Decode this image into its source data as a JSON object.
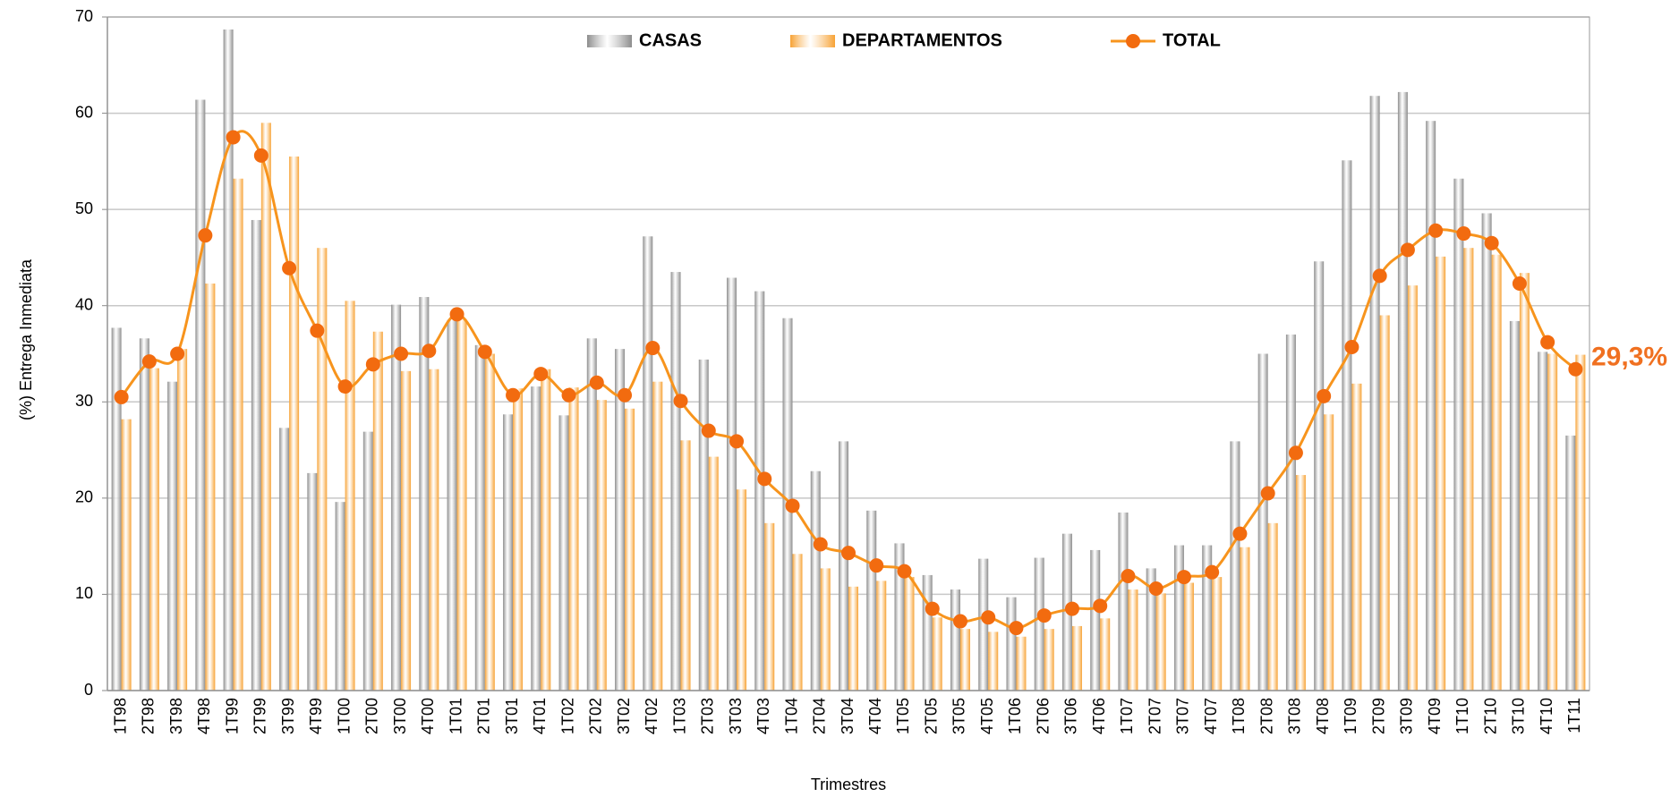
{
  "chart_data": {
    "type": "bar",
    "x_label": "Trimestres",
    "y_label": "(%) Entrega Inmediata",
    "annotation": "29,3%",
    "annotation_color": "#f07020",
    "categories": [
      "1T98",
      "2T98",
      "3T98",
      "4T98",
      "1T99",
      "2T99",
      "3T99",
      "4T99",
      "1T00",
      "2T00",
      "3T00",
      "4T00",
      "1T01",
      "2T01",
      "3T01",
      "4T01",
      "1T02",
      "2T02",
      "3T02",
      "4T02",
      "1T03",
      "2T03",
      "3T03",
      "4T03",
      "1T04",
      "2T04",
      "3T04",
      "4T04",
      "1T05",
      "2T05",
      "3T05",
      "4T05",
      "1T06",
      "2T06",
      "3T06",
      "4T06",
      "1T07",
      "2T07",
      "3T07",
      "4T07",
      "1T08",
      "2T08",
      "3T08",
      "4T08",
      "1T09",
      "2T09",
      "3T09",
      "4T09",
      "1T10",
      "2T10",
      "3T10",
      "4T10",
      "1T11"
    ],
    "series": [
      {
        "name": "CASAS",
        "type": "bar",
        "color": "#8c8c8c",
        "values": [
          37.7,
          36.6,
          32.1,
          61.4,
          68.7,
          48.9,
          27.3,
          22.6,
          19.6,
          26.9,
          40.1,
          40.9,
          38.5,
          35.9,
          28.7,
          31.6,
          28.6,
          36.6,
          35.5,
          47.2,
          43.5,
          34.4,
          42.9,
          41.5,
          38.7,
          22.8,
          25.9,
          18.7,
          15.3,
          12.0,
          10.5,
          13.7,
          9.7,
          13.8,
          16.3,
          14.6,
          18.5,
          12.7,
          15.1,
          15.1,
          25.9,
          35.0,
          37.0,
          44.6,
          55.1,
          61.8,
          62.2,
          59.2,
          53.2,
          49.6,
          38.4,
          35.2,
          26.5
        ]
      },
      {
        "name": "DEPARTAMENTOS",
        "type": "bar",
        "color": "#f7a234",
        "values": [
          28.2,
          33.5,
          35.5,
          42.3,
          53.2,
          59.0,
          55.5,
          46.0,
          40.5,
          37.3,
          33.2,
          33.4,
          38.6,
          35.0,
          31.4,
          33.4,
          31.5,
          30.2,
          29.3,
          32.1,
          26.0,
          24.3,
          20.9,
          17.4,
          14.2,
          12.7,
          10.8,
          11.4,
          11.8,
          7.6,
          6.4,
          6.1,
          5.6,
          6.4,
          6.7,
          7.5,
          10.5,
          10.1,
          11.2,
          11.8,
          14.9,
          17.4,
          22.4,
          28.7,
          31.9,
          39.0,
          42.1,
          45.1,
          46.0,
          45.3,
          43.4,
          35.0,
          34.9
        ]
      },
      {
        "name": "TOTAL",
        "type": "line",
        "color": "#f7941d",
        "marker_color": "#f26b0f",
        "values": [
          30.5,
          34.2,
          35.0,
          47.3,
          57.5,
          55.6,
          43.9,
          37.4,
          31.6,
          33.9,
          35.0,
          35.3,
          39.1,
          35.2,
          30.7,
          32.9,
          30.7,
          32.0,
          30.7,
          35.6,
          30.1,
          27.0,
          25.9,
          22.0,
          19.2,
          15.2,
          14.3,
          13.0,
          12.4,
          8.5,
          7.2,
          7.6,
          6.5,
          7.8,
          8.5,
          8.8,
          11.9,
          10.6,
          11.8,
          12.3,
          16.3,
          20.5,
          24.7,
          30.6,
          35.7,
          43.1,
          45.8,
          47.8,
          47.5,
          46.5,
          42.3,
          36.2,
          33.4
        ]
      }
    ],
    "ylim": [
      0,
      70
    ],
    "yticks": [
      0,
      10,
      20,
      30,
      40,
      50,
      60,
      70
    ],
    "grid": true,
    "legend_position": "top"
  }
}
